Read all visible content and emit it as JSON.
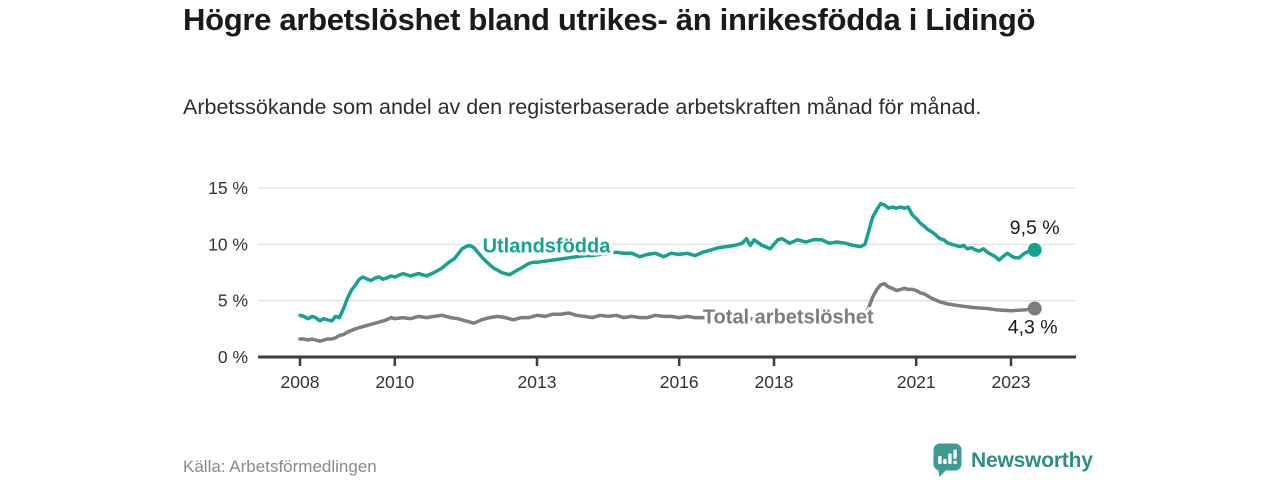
{
  "header": {
    "title": "Högre arbetslöshet bland utrikes- än inrikesfödda i Lidingö",
    "subtitle": "Arbetssökande som andel av den registerbaserade arbetskraften månad för månad."
  },
  "footer": {
    "source": "Källa: Arbetsförmedlingen",
    "brand": "Newsworthy"
  },
  "colors": {
    "accent_teal": "#16a191",
    "series_gray": "#7d7d7d",
    "title_text": "#1a1a1a",
    "axis_text": "#333333",
    "axis_line": "#3d3d3d",
    "gridline": "#d9d9d9",
    "source_text": "#8a8a8a",
    "logo_teal": "#2f8d87"
  },
  "chart_data": {
    "type": "line",
    "title": "Högre arbetslöshet bland utrikes- än inrikesfödda i Lidingö",
    "xlabel": "",
    "ylabel": "Arbetssökande som andel av den registerbaserade arbetskraften (%)",
    "grid": true,
    "legend_position": "inline-labels",
    "x_axis": {
      "ticks": [
        2008,
        2010,
        2013,
        2016,
        2018,
        2021,
        2023
      ],
      "range": [
        2007.1,
        2024.4
      ]
    },
    "y_axis": {
      "unit": "%",
      "range": [
        0,
        15
      ],
      "ticks": [
        {
          "value": 0,
          "label": "0 %"
        },
        {
          "value": 5,
          "label": "5 %"
        },
        {
          "value": 10,
          "label": "10 %"
        },
        {
          "value": 15,
          "label": "15 %"
        }
      ]
    },
    "series": [
      {
        "name": "Utlandsfödda",
        "color": "#16a191",
        "end_label": "9,5 %",
        "end_value": 9.5,
        "label_anchor": {
          "year": 2013.2,
          "value": 9.9
        },
        "points": [
          [
            2008.0,
            3.7
          ],
          [
            2008.08,
            3.6
          ],
          [
            2008.17,
            3.4
          ],
          [
            2008.25,
            3.6
          ],
          [
            2008.33,
            3.5
          ],
          [
            2008.42,
            3.2
          ],
          [
            2008.5,
            3.4
          ],
          [
            2008.58,
            3.3
          ],
          [
            2008.67,
            3.2
          ],
          [
            2008.75,
            3.6
          ],
          [
            2008.83,
            3.5
          ],
          [
            2008.92,
            4.3
          ],
          [
            2009.0,
            5.2
          ],
          [
            2009.08,
            5.9
          ],
          [
            2009.17,
            6.4
          ],
          [
            2009.25,
            6.9
          ],
          [
            2009.33,
            7.1
          ],
          [
            2009.42,
            6.9
          ],
          [
            2009.5,
            6.8
          ],
          [
            2009.58,
            7.0
          ],
          [
            2009.67,
            7.1
          ],
          [
            2009.75,
            6.9
          ],
          [
            2009.83,
            7.0
          ],
          [
            2009.92,
            7.2
          ],
          [
            2010.0,
            7.1
          ],
          [
            2010.17,
            7.4
          ],
          [
            2010.33,
            7.2
          ],
          [
            2010.5,
            7.4
          ],
          [
            2010.67,
            7.2
          ],
          [
            2010.83,
            7.5
          ],
          [
            2011.0,
            7.9
          ],
          [
            2011.08,
            8.2
          ],
          [
            2011.17,
            8.5
          ],
          [
            2011.25,
            8.7
          ],
          [
            2011.33,
            9.1
          ],
          [
            2011.42,
            9.6
          ],
          [
            2011.5,
            9.8
          ],
          [
            2011.58,
            9.9
          ],
          [
            2011.67,
            9.7
          ],
          [
            2011.75,
            9.3
          ],
          [
            2011.83,
            8.9
          ],
          [
            2011.92,
            8.5
          ],
          [
            2012.0,
            8.2
          ],
          [
            2012.08,
            7.9
          ],
          [
            2012.17,
            7.7
          ],
          [
            2012.25,
            7.5
          ],
          [
            2012.33,
            7.4
          ],
          [
            2012.42,
            7.3
          ],
          [
            2012.5,
            7.5
          ],
          [
            2012.58,
            7.7
          ],
          [
            2012.67,
            7.9
          ],
          [
            2012.75,
            8.1
          ],
          [
            2012.83,
            8.3
          ],
          [
            2012.92,
            8.4
          ],
          [
            2013.0,
            8.4
          ],
          [
            2013.17,
            8.5
          ],
          [
            2013.33,
            8.6
          ],
          [
            2013.5,
            8.7
          ],
          [
            2013.67,
            8.8
          ],
          [
            2013.83,
            8.9
          ],
          [
            2014.0,
            9.0
          ],
          [
            2014.17,
            9.0
          ],
          [
            2014.33,
            9.1
          ],
          [
            2014.5,
            9.2
          ],
          [
            2014.67,
            9.3
          ],
          [
            2014.83,
            9.2
          ],
          [
            2015.0,
            9.2
          ],
          [
            2015.17,
            8.9
          ],
          [
            2015.33,
            9.1
          ],
          [
            2015.5,
            9.2
          ],
          [
            2015.67,
            8.9
          ],
          [
            2015.83,
            9.2
          ],
          [
            2016.0,
            9.1
          ],
          [
            2016.17,
            9.2
          ],
          [
            2016.33,
            9.0
          ],
          [
            2016.5,
            9.3
          ],
          [
            2016.67,
            9.5
          ],
          [
            2016.83,
            9.7
          ],
          [
            2017.0,
            9.8
          ],
          [
            2017.17,
            9.9
          ],
          [
            2017.33,
            10.1
          ],
          [
            2017.42,
            10.5
          ],
          [
            2017.5,
            9.9
          ],
          [
            2017.58,
            10.4
          ],
          [
            2017.75,
            9.9
          ],
          [
            2017.92,
            9.6
          ],
          [
            2018.08,
            10.4
          ],
          [
            2018.17,
            10.5
          ],
          [
            2018.33,
            10.1
          ],
          [
            2018.5,
            10.4
          ],
          [
            2018.67,
            10.2
          ],
          [
            2018.83,
            10.4
          ],
          [
            2019.0,
            10.4
          ],
          [
            2019.17,
            10.1
          ],
          [
            2019.33,
            10.2
          ],
          [
            2019.5,
            10.1
          ],
          [
            2019.67,
            9.9
          ],
          [
            2019.83,
            9.8
          ],
          [
            2019.92,
            10.0
          ],
          [
            2020.0,
            11.2
          ],
          [
            2020.08,
            12.4
          ],
          [
            2020.17,
            13.1
          ],
          [
            2020.25,
            13.6
          ],
          [
            2020.33,
            13.5
          ],
          [
            2020.42,
            13.2
          ],
          [
            2020.5,
            13.3
          ],
          [
            2020.58,
            13.2
          ],
          [
            2020.67,
            13.3
          ],
          [
            2020.75,
            13.2
          ],
          [
            2020.83,
            13.3
          ],
          [
            2020.92,
            12.6
          ],
          [
            2021.0,
            12.3
          ],
          [
            2021.08,
            11.9
          ],
          [
            2021.17,
            11.6
          ],
          [
            2021.25,
            11.3
          ],
          [
            2021.33,
            11.1
          ],
          [
            2021.42,
            10.8
          ],
          [
            2021.5,
            10.5
          ],
          [
            2021.58,
            10.4
          ],
          [
            2021.67,
            10.1
          ],
          [
            2021.75,
            10.0
          ],
          [
            2021.83,
            9.9
          ],
          [
            2021.92,
            9.8
          ],
          [
            2022.0,
            9.9
          ],
          [
            2022.08,
            9.6
          ],
          [
            2022.17,
            9.7
          ],
          [
            2022.25,
            9.5
          ],
          [
            2022.33,
            9.4
          ],
          [
            2022.42,
            9.6
          ],
          [
            2022.5,
            9.3
          ],
          [
            2022.58,
            9.1
          ],
          [
            2022.67,
            8.9
          ],
          [
            2022.75,
            8.6
          ],
          [
            2022.83,
            8.9
          ],
          [
            2022.92,
            9.2
          ],
          [
            2023.0,
            9.0
          ],
          [
            2023.08,
            8.8
          ],
          [
            2023.17,
            8.8
          ],
          [
            2023.25,
            9.1
          ],
          [
            2023.33,
            9.3
          ],
          [
            2023.42,
            9.4
          ],
          [
            2023.5,
            9.5
          ]
        ]
      },
      {
        "name": "Total arbetslöshet",
        "color": "#7d7d7d",
        "end_label": "4,3 %",
        "end_value": 4.3,
        "label_anchor": {
          "year": 2018.3,
          "value": 3.6
        },
        "points": [
          [
            2008.0,
            1.6
          ],
          [
            2008.08,
            1.6
          ],
          [
            2008.17,
            1.5
          ],
          [
            2008.25,
            1.6
          ],
          [
            2008.33,
            1.5
          ],
          [
            2008.42,
            1.4
          ],
          [
            2008.5,
            1.5
          ],
          [
            2008.58,
            1.6
          ],
          [
            2008.67,
            1.6
          ],
          [
            2008.75,
            1.7
          ],
          [
            2008.83,
            1.9
          ],
          [
            2008.92,
            2.0
          ],
          [
            2009.0,
            2.2
          ],
          [
            2009.17,
            2.5
          ],
          [
            2009.33,
            2.7
          ],
          [
            2009.5,
            2.9
          ],
          [
            2009.67,
            3.1
          ],
          [
            2009.83,
            3.3
          ],
          [
            2009.92,
            3.5
          ],
          [
            2010.0,
            3.4
          ],
          [
            2010.17,
            3.5
          ],
          [
            2010.33,
            3.4
          ],
          [
            2010.5,
            3.6
          ],
          [
            2010.67,
            3.5
          ],
          [
            2010.83,
            3.6
          ],
          [
            2011.0,
            3.7
          ],
          [
            2011.17,
            3.5
          ],
          [
            2011.33,
            3.4
          ],
          [
            2011.5,
            3.2
          ],
          [
            2011.67,
            3.0
          ],
          [
            2011.83,
            3.3
          ],
          [
            2012.0,
            3.5
          ],
          [
            2012.17,
            3.6
          ],
          [
            2012.33,
            3.5
          ],
          [
            2012.5,
            3.3
          ],
          [
            2012.67,
            3.5
          ],
          [
            2012.83,
            3.5
          ],
          [
            2013.0,
            3.7
          ],
          [
            2013.17,
            3.6
          ],
          [
            2013.33,
            3.8
          ],
          [
            2013.5,
            3.8
          ],
          [
            2013.67,
            3.9
          ],
          [
            2013.83,
            3.7
          ],
          [
            2014.0,
            3.6
          ],
          [
            2014.17,
            3.5
          ],
          [
            2014.33,
            3.7
          ],
          [
            2014.5,
            3.6
          ],
          [
            2014.67,
            3.7
          ],
          [
            2014.83,
            3.5
          ],
          [
            2015.0,
            3.6
          ],
          [
            2015.17,
            3.5
          ],
          [
            2015.33,
            3.5
          ],
          [
            2015.5,
            3.7
          ],
          [
            2015.67,
            3.6
          ],
          [
            2015.83,
            3.6
          ],
          [
            2016.0,
            3.5
          ],
          [
            2016.17,
            3.6
          ],
          [
            2016.33,
            3.5
          ],
          [
            2016.5,
            3.5
          ],
          [
            2016.67,
            3.4
          ],
          [
            2016.83,
            3.4
          ],
          [
            2017.0,
            3.4
          ],
          [
            2017.25,
            3.3
          ],
          [
            2017.5,
            3.4
          ],
          [
            2017.75,
            3.3
          ],
          [
            2018.0,
            3.4
          ],
          [
            2018.25,
            3.3
          ],
          [
            2018.5,
            3.2
          ],
          [
            2018.75,
            3.3
          ],
          [
            2019.0,
            3.2
          ],
          [
            2019.25,
            3.3
          ],
          [
            2019.5,
            3.3
          ],
          [
            2019.75,
            3.4
          ],
          [
            2019.92,
            3.8
          ],
          [
            2020.0,
            4.4
          ],
          [
            2020.08,
            5.3
          ],
          [
            2020.17,
            6.0
          ],
          [
            2020.25,
            6.4
          ],
          [
            2020.33,
            6.5
          ],
          [
            2020.42,
            6.2
          ],
          [
            2020.5,
            6.1
          ],
          [
            2020.58,
            5.9
          ],
          [
            2020.67,
            6.0
          ],
          [
            2020.75,
            6.1
          ],
          [
            2020.83,
            6.0
          ],
          [
            2020.92,
            6.0
          ],
          [
            2021.0,
            5.9
          ],
          [
            2021.08,
            5.7
          ],
          [
            2021.17,
            5.6
          ],
          [
            2021.33,
            5.2
          ],
          [
            2021.5,
            4.9
          ],
          [
            2021.67,
            4.7
          ],
          [
            2021.83,
            4.6
          ],
          [
            2022.0,
            4.5
          ],
          [
            2022.17,
            4.4
          ],
          [
            2022.33,
            4.35
          ],
          [
            2022.5,
            4.3
          ],
          [
            2022.67,
            4.2
          ],
          [
            2022.83,
            4.15
          ],
          [
            2023.0,
            4.1
          ],
          [
            2023.17,
            4.15
          ],
          [
            2023.33,
            4.2
          ],
          [
            2023.5,
            4.3
          ]
        ]
      }
    ]
  }
}
